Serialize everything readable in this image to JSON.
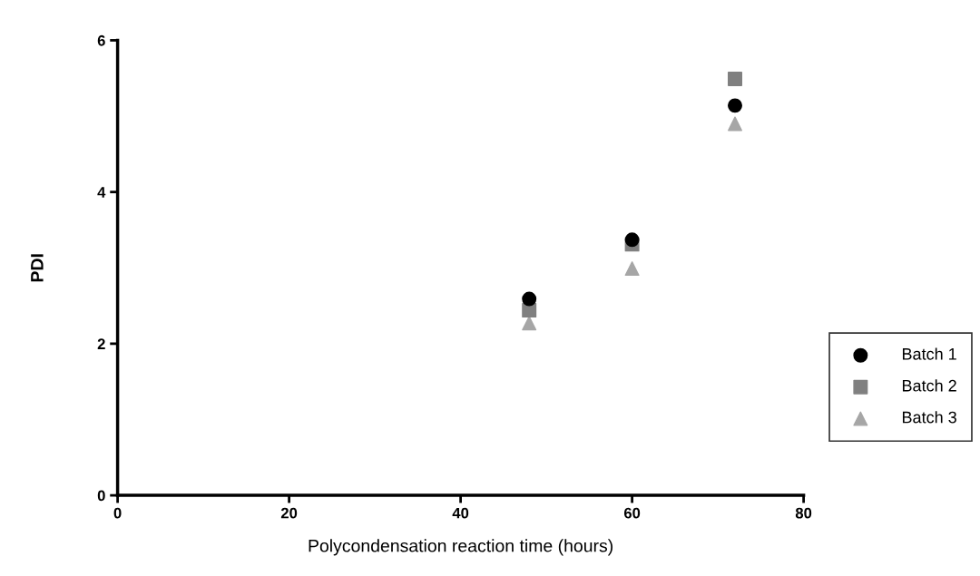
{
  "chart_data": {
    "type": "scatter",
    "xlabel": "Polycondensation reaction time (hours)",
    "ylabel": "PDI",
    "xlim": [
      0,
      80
    ],
    "xticks": [
      0,
      20,
      40,
      60,
      80
    ],
    "ylim": [
      0,
      6
    ],
    "yticks": [
      0,
      2,
      4,
      6
    ],
    "grid": false,
    "legend": "bottom right",
    "series": [
      {
        "name": "Batch 1",
        "color": "#000000",
        "marker": "circle",
        "x": [
          48,
          60,
          72
        ],
        "values": [
          2.59,
          3.37,
          5.14
        ]
      },
      {
        "name": "Batch 2",
        "color": "#808080",
        "marker": "square",
        "x": [
          48,
          60,
          72
        ],
        "values": [
          2.44,
          3.31,
          5.49
        ]
      },
      {
        "name": "Batch 3",
        "color": "#a6a6a6",
        "marker": "triangle",
        "x": [
          48,
          60,
          72
        ],
        "values": [
          2.27,
          2.99,
          4.9
        ]
      }
    ]
  }
}
